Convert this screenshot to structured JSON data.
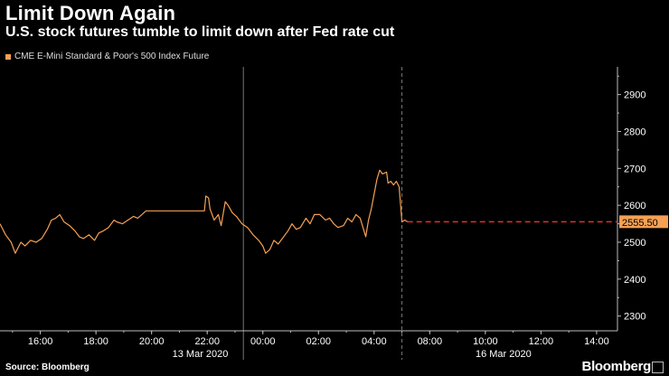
{
  "header": {
    "title": "Limit Down Again",
    "subtitle": "U.S. stock futures tumble to limit down after Fed rate cut"
  },
  "legend": {
    "label": "CME E-Mini Standard & Poor's 500 Index Future"
  },
  "footer": {
    "source": "Source: Bloomberg",
    "brand": "Bloomberg"
  },
  "colors": {
    "series": "#f5a054",
    "limit_line": "#e0302a",
    "label_bg": "#f5a054",
    "axis": "#bbbbbb"
  },
  "chart_data": {
    "type": "line",
    "title": "Limit Down Again",
    "subtitle": "U.S. stock futures tumble to limit down after Fed rate cut",
    "series_name": "CME E-Mini Standard & Poor's 500 Index Future",
    "y_ticks": [
      "2300",
      "2400",
      "2500",
      "2600",
      "2700",
      "2800",
      "2900"
    ],
    "y_tick_values": [
      2300,
      2400,
      2500,
      2600,
      2700,
      2800,
      2900
    ],
    "ylim": [
      2260,
      2975
    ],
    "xlim_hours": [
      0,
      22.2
    ],
    "x_ticks": [
      {
        "label": "16:00",
        "h": 1.45
      },
      {
        "label": "18:00",
        "h": 3.45
      },
      {
        "label": "20:00",
        "h": 5.45
      },
      {
        "label": "22:00",
        "h": 7.45
      },
      {
        "label": "00:00",
        "h": 9.45
      },
      {
        "label": "02:00",
        "h": 11.45
      },
      {
        "label": "04:00",
        "h": 13.45
      },
      {
        "label": "08:00",
        "h": 15.45
      },
      {
        "label": "10:00",
        "h": 17.45
      },
      {
        "label": "12:00",
        "h": 19.45
      },
      {
        "label": "14:00",
        "h": 21.45
      }
    ],
    "date_labels": [
      {
        "label": "13 Mar 2020",
        "h": 7.2
      },
      {
        "label": "16 Mar 2020",
        "h": 18.1
      }
    ],
    "day_separators_h": [
      8.75,
      14.45
    ],
    "session_break_h": 14.45,
    "last_value": 2555.5,
    "last_value_label": "2555.50",
    "series": [
      [
        0.0,
        2550
      ],
      [
        0.2,
        2520
      ],
      [
        0.4,
        2500
      ],
      [
        0.55,
        2470
      ],
      [
        0.75,
        2500
      ],
      [
        0.9,
        2490
      ],
      [
        1.1,
        2505
      ],
      [
        1.3,
        2500
      ],
      [
        1.5,
        2510
      ],
      [
        1.7,
        2535
      ],
      [
        1.85,
        2560
      ],
      [
        2.0,
        2565
      ],
      [
        2.15,
        2575
      ],
      [
        2.3,
        2555
      ],
      [
        2.5,
        2545
      ],
      [
        2.7,
        2530
      ],
      [
        2.85,
        2515
      ],
      [
        3.0,
        2510
      ],
      [
        3.2,
        2520
      ],
      [
        3.4,
        2505
      ],
      [
        3.55,
        2525
      ],
      [
        3.7,
        2530
      ],
      [
        3.9,
        2540
      ],
      [
        4.1,
        2560
      ],
      [
        4.2,
        2555
      ],
      [
        4.4,
        2550
      ],
      [
        4.6,
        2560
      ],
      [
        4.8,
        2570
      ],
      [
        4.95,
        2565
      ],
      [
        5.1,
        2575
      ],
      [
        5.25,
        2585
      ],
      [
        5.35,
        2585
      ],
      [
        6.0,
        2585
      ],
      [
        6.6,
        2585
      ],
      [
        7.35,
        2585
      ],
      [
        7.4,
        2625
      ],
      [
        7.5,
        2620
      ],
      [
        7.55,
        2590
      ],
      [
        7.7,
        2560
      ],
      [
        7.85,
        2575
      ],
      [
        7.95,
        2545
      ],
      [
        8.1,
        2610
      ],
      [
        8.2,
        2600
      ],
      [
        8.35,
        2580
      ],
      [
        8.5,
        2570
      ],
      [
        8.7,
        2550
      ],
      [
        8.9,
        2540
      ],
      [
        9.1,
        2520
      ],
      [
        9.3,
        2505
      ],
      [
        9.45,
        2490
      ],
      [
        9.55,
        2470
      ],
      [
        9.7,
        2480
      ],
      [
        9.85,
        2505
      ],
      [
        10.0,
        2495
      ],
      [
        10.15,
        2510
      ],
      [
        10.35,
        2530
      ],
      [
        10.5,
        2550
      ],
      [
        10.65,
        2535
      ],
      [
        10.8,
        2540
      ],
      [
        11.0,
        2565
      ],
      [
        11.15,
        2550
      ],
      [
        11.3,
        2575
      ],
      [
        11.5,
        2575
      ],
      [
        11.7,
        2560
      ],
      [
        11.85,
        2565
      ],
      [
        12.0,
        2550
      ],
      [
        12.15,
        2540
      ],
      [
        12.35,
        2545
      ],
      [
        12.5,
        2565
      ],
      [
        12.65,
        2555
      ],
      [
        12.8,
        2575
      ],
      [
        12.95,
        2565
      ],
      [
        13.05,
        2540
      ],
      [
        13.15,
        2515
      ],
      [
        13.25,
        2560
      ],
      [
        13.35,
        2590
      ],
      [
        13.45,
        2630
      ],
      [
        13.55,
        2670
      ],
      [
        13.65,
        2695
      ],
      [
        13.75,
        2685
      ],
      [
        13.9,
        2690
      ],
      [
        13.95,
        2660
      ],
      [
        14.05,
        2665
      ],
      [
        14.15,
        2655
      ],
      [
        14.25,
        2665
      ],
      [
        14.35,
        2650
      ],
      [
        14.45,
        2555
      ],
      [
        14.55,
        2560
      ],
      [
        14.65,
        2555.5
      ]
    ]
  }
}
